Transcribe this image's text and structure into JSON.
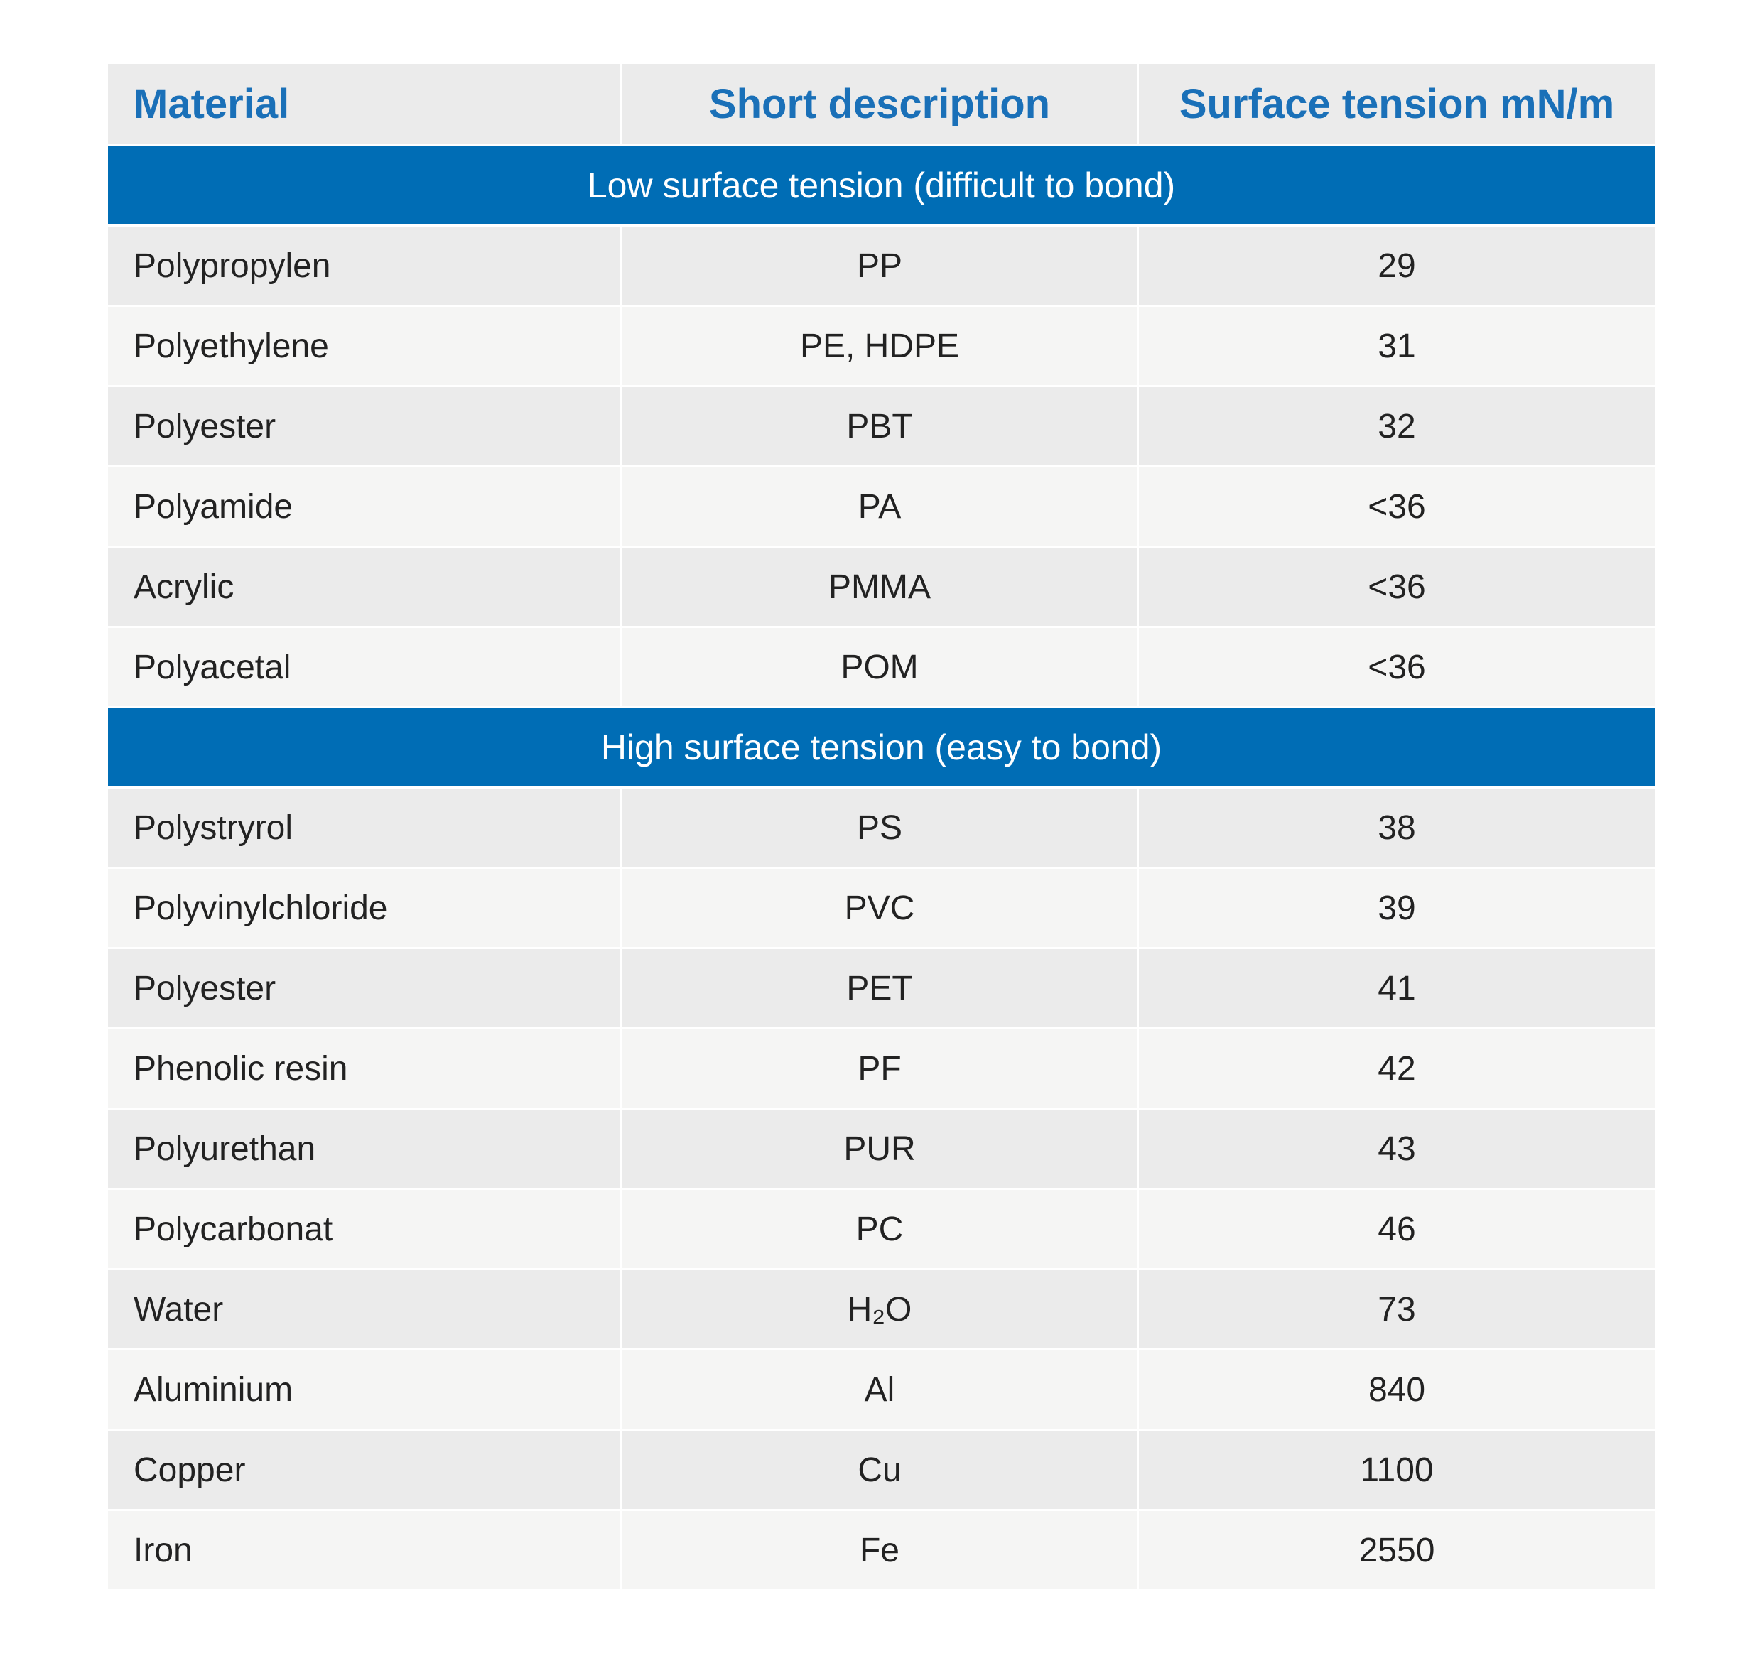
{
  "header": [
    "Material",
    "Short description",
    "Surface tension mN/m"
  ],
  "sections": [
    {
      "title": "Low surface tension (difficult to bond)",
      "rows": [
        [
          "Polypropylen",
          "PP",
          29
        ],
        [
          "Polyethylene",
          "PE, HDPE",
          31
        ],
        [
          "Polyester",
          "PBT",
          32
        ],
        [
          "Polyamide",
          "PA",
          "<36"
        ],
        [
          "Acrylic",
          "PMMA",
          "<36"
        ],
        [
          "Polyacetal",
          "POM",
          "<36"
        ]
      ]
    },
    {
      "title": "High surface tension (easy to bond)",
      "rows": [
        [
          "Polystryrol",
          "PS",
          38
        ],
        [
          "Polyvinylchloride",
          "PVC",
          39
        ],
        [
          "Polyester",
          "PET",
          41
        ],
        [
          "Phenolic resin",
          "PF",
          42
        ],
        [
          "Polyurethan",
          "PUR",
          43
        ],
        [
          "Polycarbonat",
          "PC",
          46
        ],
        [
          "Water",
          "H₂O",
          73
        ],
        [
          "Aluminium",
          "Al",
          840
        ],
        [
          "Copper",
          "Cu",
          1100
        ],
        [
          "Iron",
          "Fe",
          2550
        ]
      ]
    }
  ]
}
